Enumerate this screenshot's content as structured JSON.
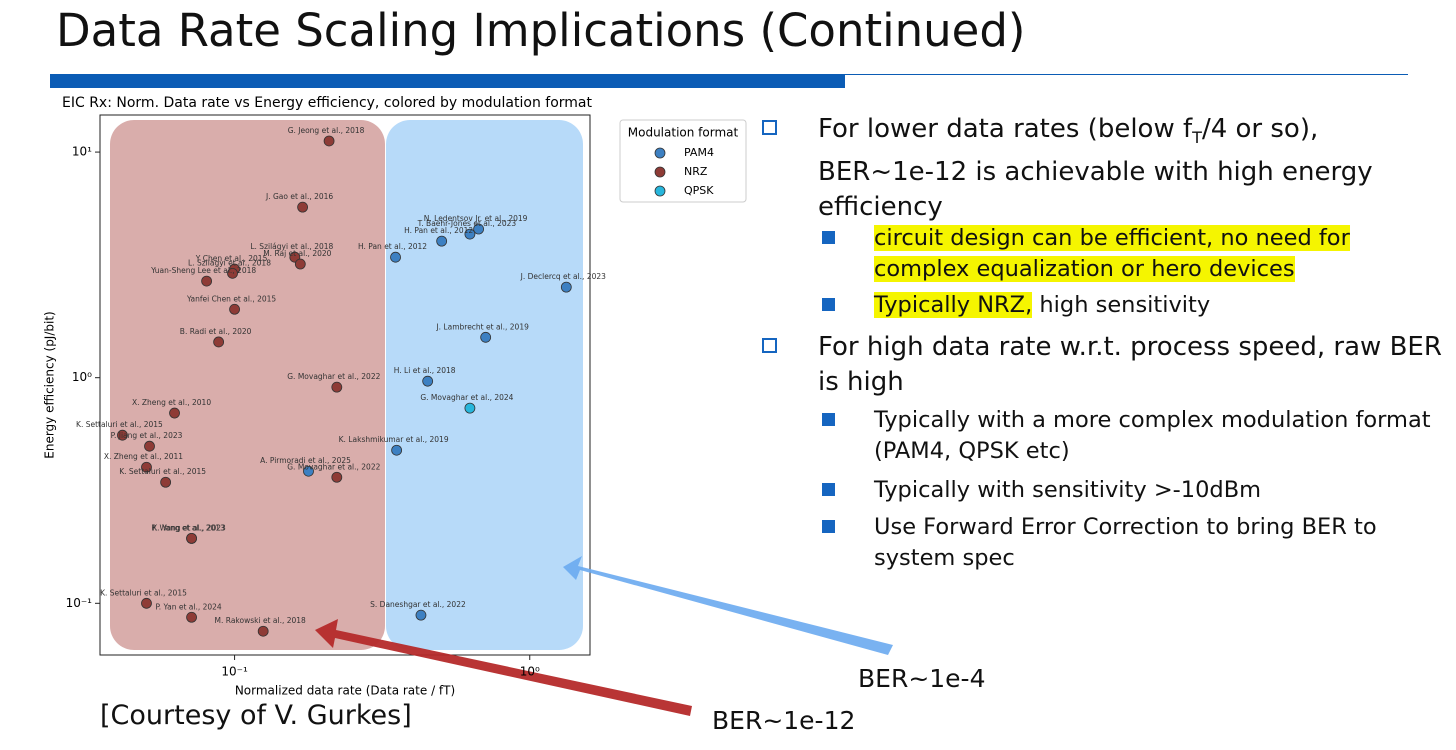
{
  "title": "Data Rate Scaling Implications (Continued)",
  "chart_data": {
    "type": "scatter",
    "title": "EIC Rx: Norm. Data rate vs Energy efficiency, colored by modulation format",
    "xlabel": "Normalized data rate (Data rate / fT)",
    "ylabel": "Energy efficiency (pJ/bit)",
    "legend_title": "Modulation format",
    "xscale": "log",
    "yscale": "log",
    "xlim": [
      0.035,
      1.6
    ],
    "ylim": [
      0.059,
      14.6
    ],
    "xticks": [
      {
        "value": 0.1,
        "label": "10⁻¹"
      },
      {
        "value": 1,
        "label": "10⁰"
      }
    ],
    "yticks": [
      {
        "value": 0.1,
        "label": "10⁻¹"
      },
      {
        "value": 1,
        "label": "10⁰"
      },
      {
        "value": 10,
        "label": "10¹"
      }
    ],
    "grid": false,
    "series": [
      {
        "name": "PAM4",
        "color": "#3d80c2",
        "x": [
          0.671,
          0.627,
          0.503,
          0.351,
          1.33,
          0.709,
          0.451,
          0.354,
          0.178,
          0.428
        ],
        "values": [
          4.56,
          4.33,
          4.03,
          3.42,
          2.52,
          1.51,
          0.965,
          0.477,
          0.385,
          0.0886
        ],
        "point_labels": [
          "N. Ledentsov Jr. et al., 2019",
          "T. Baehr-Jones et al., 2023",
          "H. Pan et al., 2012",
          "H. Pan et al., 2012",
          "J. Declercq et al., 2023",
          "J. Lambrecht et al., 2019",
          "H. Li et al., 2018",
          "K. Lakshmikumar et al., 2019",
          "A. Pirmoradi et al., 2025",
          "S. Daneshgar et al., 2022"
        ]
      },
      {
        "name": "NRZ",
        "color": "#8e3b36",
        "x": [
          0.209,
          0.17,
          0.16,
          0.167,
          0.1,
          0.0984,
          0.0804,
          0.1,
          0.0883,
          0.222,
          0.0626,
          0.0417,
          0.0515,
          0.0503,
          0.222,
          0.0584,
          0.0715,
          0.0715,
          0.0503,
          0.0715,
          0.125
        ],
        "values": [
          11.2,
          5.7,
          3.42,
          3.19,
          3.03,
          2.9,
          2.68,
          2.01,
          1.44,
          0.908,
          0.697,
          0.556,
          0.497,
          0.401,
          0.362,
          0.344,
          0.194,
          0.194,
          0.1,
          0.0867,
          0.0752
        ],
        "point_labels": [
          "G. Jeong et al., 2018",
          "J. Gao et al., 2016",
          "L. Szilágyi et al., 2018",
          "M. Raj et al., 2020",
          "Y Chen et al., 2015",
          "L. Szilágyi et al., 2018",
          "Yuan-Sheng Lee et al., 2018",
          "Yanfei Chen et al., 2015",
          "B. Radi et al., 2020",
          "G. Movaghar et al., 2022",
          "X. Zheng et al., 2010",
          "K. Settaluri et al., 2015",
          "P. Jiang et al., 2023",
          "X. Zheng et al., 2011",
          "G. Movaghar et al., 2022",
          "K. Settaluri et al., 2015",
          "P. Wang et al., 2023",
          "K. Yang et al., 2013",
          "K. Settaluri et al., 2015",
          "P. Yan et al., 2024",
          "M. Rakowski et al., 2018"
        ]
      },
      {
        "name": "QPSK",
        "color": "#27b6dc",
        "x": [
          0.627
        ],
        "values": [
          0.733
        ],
        "point_labels": [
          "G. Movaghar et al., 2024"
        ]
      }
    ]
  },
  "bullets": [
    {
      "text_before": "For lower data rates (below f",
      "subscript": "T",
      "text_after": "/4 or so), BER~1e-12 is achievable with high energy efficiency",
      "sub": [
        {
          "highlighted": "circuit design can be efficient, no need for complex equalization or hero devices"
        },
        {
          "highlighted": "Typically NRZ,",
          "text": "high sensitivity"
        }
      ]
    },
    {
      "text": "For high data rate w.r.t. process speed, raw BER is high",
      "sub": [
        {
          "text": "Typically with a more complex modulation format (PAM4, QPSK etc)"
        },
        {
          "text": "Typically with sensitivity >-10dBm"
        },
        {
          "text": "Use Forward Error Correction to bring BER to system spec"
        }
      ]
    }
  ],
  "annotations": [
    "BER~1e-4",
    "BER~1e-12"
  ],
  "courtesy": "[Courtesy of V. Gurkes]"
}
